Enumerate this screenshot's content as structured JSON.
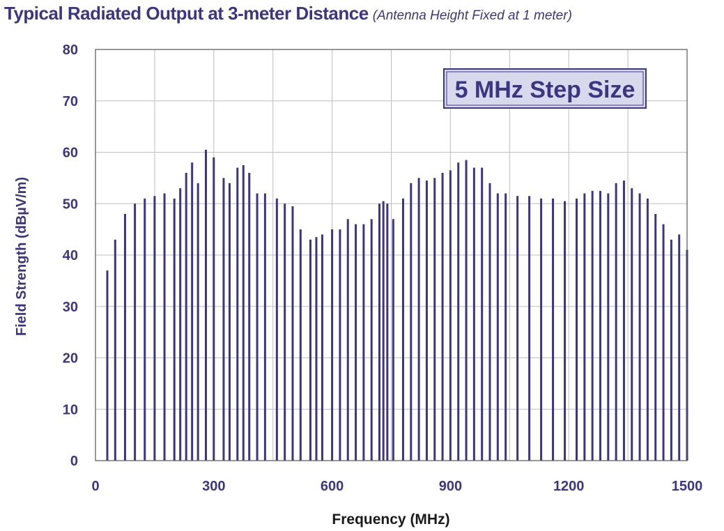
{
  "title": "Typical Radiated Output at 3-meter Distance",
  "subtitle": "(Antenna Height Fixed at 1 meter)",
  "chart_data": {
    "type": "bar",
    "title": "Typical Radiated Output at 3-meter Distance",
    "subtitle": "(Antenna Height Fixed at 1 meter)",
    "xlabel": "Frequency (MHz)",
    "ylabel": "Field Strength (dBµV/m)",
    "xlim": [
      0,
      1500
    ],
    "ylim": [
      0,
      80
    ],
    "xticks": [
      0,
      300,
      600,
      900,
      1200,
      1500
    ],
    "yticks": [
      0,
      10,
      20,
      30,
      40,
      50,
      60,
      70,
      80
    ],
    "grid": true,
    "annotation": "5 MHz Step Size",
    "annotation_position": "top-right",
    "color": "#3c3582",
    "series": [
      {
        "name": "",
        "x": [
          30,
          50,
          75,
          100,
          125,
          150,
          175,
          200,
          215,
          230,
          245,
          260,
          280,
          300,
          325,
          340,
          360,
          375,
          390,
          410,
          430,
          460,
          480,
          500,
          520,
          545,
          560,
          575,
          600,
          620,
          640,
          660,
          680,
          700,
          720,
          730,
          740,
          755,
          780,
          800,
          820,
          840,
          860,
          880,
          900,
          920,
          940,
          960,
          980,
          1000,
          1020,
          1040,
          1070,
          1100,
          1130,
          1160,
          1190,
          1220,
          1240,
          1260,
          1280,
          1300,
          1320,
          1340,
          1360,
          1380,
          1400,
          1420,
          1440,
          1460,
          1480,
          1500
        ],
        "y": [
          37,
          43,
          48,
          50,
          51,
          51.5,
          52,
          51,
          53,
          56,
          58,
          54,
          60.5,
          59,
          55,
          54,
          57,
          57.5,
          56,
          52,
          52,
          51,
          50,
          49.5,
          45,
          43,
          43.5,
          44,
          45,
          45,
          47,
          46,
          46,
          47,
          50,
          50.5,
          50,
          47,
          51,
          54,
          55,
          54.5,
          55,
          56,
          56.5,
          58,
          58.5,
          57,
          57,
          54,
          52,
          52,
          51.5,
          51.5,
          51,
          51,
          50.5,
          51,
          52,
          52.5,
          52.5,
          52,
          54,
          54.5,
          53,
          52,
          51,
          48,
          46,
          43,
          44,
          41
        ]
      }
    ]
  }
}
